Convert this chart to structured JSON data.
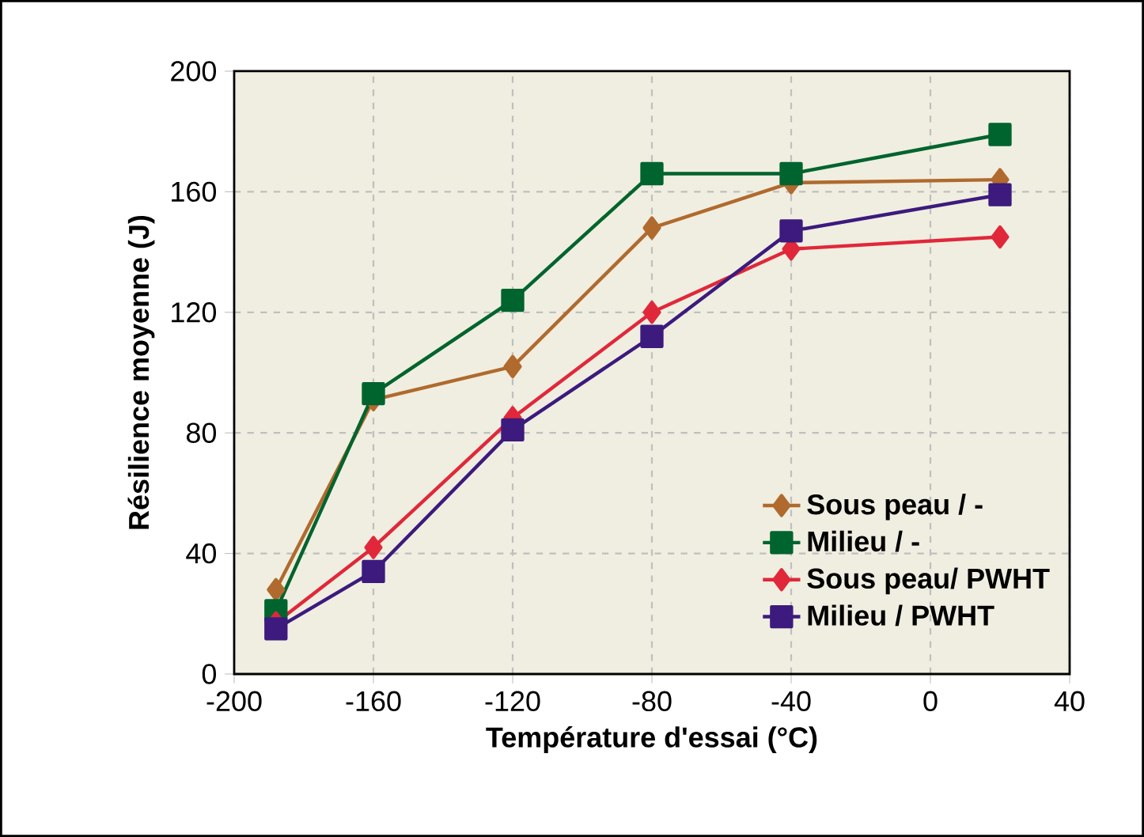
{
  "chart_data": {
    "type": "line",
    "xlabel": "Température d'essai (°C)",
    "ylabel": "Résilience moyenne (J)",
    "x": [
      -188,
      -160,
      -120,
      -80,
      -40,
      20
    ],
    "series": [
      {
        "name": "Sous peau / -",
        "color": "#b06a2e",
        "marker": "diamond",
        "values": [
          28,
          91,
          102,
          148,
          163,
          164
        ]
      },
      {
        "name": "Milieu / -",
        "color": "#00642e",
        "marker": "square",
        "values": [
          21,
          93,
          124,
          166,
          166,
          179
        ]
      },
      {
        "name": "Sous peau/ PWHT",
        "color": "#e0283a",
        "marker": "diamond",
        "values": [
          17,
          42,
          85,
          120,
          141,
          145
        ]
      },
      {
        "name": "Milieu / PWHT",
        "color": "#3c1a7e",
        "marker": "square",
        "values": [
          15,
          34,
          81,
          112,
          147,
          159
        ]
      }
    ],
    "xlim": [
      -200,
      40
    ],
    "xticks": [
      -200,
      -160,
      -120,
      -80,
      -40,
      0,
      40
    ],
    "ylim": [
      0,
      200
    ],
    "yticks": [
      0,
      40,
      80,
      120,
      160,
      200
    ],
    "grid": true,
    "legend": "bottom right",
    "line_style": "solid"
  }
}
